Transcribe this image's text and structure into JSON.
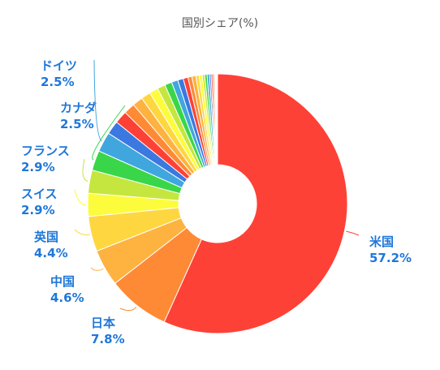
{
  "chart_data": {
    "type": "pie",
    "donut": true,
    "title": "国別シェア(%)",
    "slices": [
      {
        "name": "米国",
        "value": 57.2,
        "label": "57.2%",
        "labeled": true,
        "color": "#fe4136"
      },
      {
        "name": "日本",
        "value": 7.8,
        "label": "7.8%",
        "labeled": true,
        "color": "#fe8a36"
      },
      {
        "name": "中国",
        "value": 4.6,
        "label": "4.6%",
        "labeled": true,
        "color": "#feb23f"
      },
      {
        "name": "英国",
        "value": 4.4,
        "label": "4.4%",
        "labeled": true,
        "color": "#fed740"
      },
      {
        "name": "スイス",
        "value": 2.9,
        "label": "2.9%",
        "labeled": true,
        "color": "#fcfc3c"
      },
      {
        "name": "フランス",
        "value": 2.9,
        "label": "2.9%",
        "labeled": true,
        "color": "#c5e63e"
      },
      {
        "name": "カナダ",
        "value": 2.5,
        "label": "2.5%",
        "labeled": true,
        "color": "#3ad64a"
      },
      {
        "name": "ドイツ",
        "value": 2.5,
        "label": "2.5%",
        "labeled": true,
        "color": "#40a6de"
      },
      {
        "name": "",
        "value": 1.7,
        "label": "",
        "labeled": false,
        "color": "#3b78e0"
      },
      {
        "name": "",
        "value": 1.6,
        "label": "",
        "labeled": false,
        "color": "#fe4136"
      },
      {
        "name": "",
        "value": 1.4,
        "label": "",
        "labeled": false,
        "color": "#fe8a36"
      },
      {
        "name": "",
        "value": 1.3,
        "label": "",
        "labeled": false,
        "color": "#feb23f"
      },
      {
        "name": "",
        "value": 1.2,
        "label": "",
        "labeled": false,
        "color": "#fed740"
      },
      {
        "name": "",
        "value": 1.1,
        "label": "",
        "labeled": false,
        "color": "#fcfc3c"
      },
      {
        "name": "",
        "value": 1.0,
        "label": "",
        "labeled": false,
        "color": "#c5e63e"
      },
      {
        "name": "",
        "value": 0.9,
        "label": "",
        "labeled": false,
        "color": "#3ad64a"
      },
      {
        "name": "",
        "value": 0.8,
        "label": "",
        "labeled": false,
        "color": "#40a6de"
      },
      {
        "name": "",
        "value": 0.7,
        "label": "",
        "labeled": false,
        "color": "#3b78e0"
      },
      {
        "name": "",
        "value": 0.6,
        "label": "",
        "labeled": false,
        "color": "#fe4136"
      },
      {
        "name": "",
        "value": 0.5,
        "label": "",
        "labeled": false,
        "color": "#fe8a36"
      },
      {
        "name": "",
        "value": 0.5,
        "label": "",
        "labeled": false,
        "color": "#feb23f"
      },
      {
        "name": "",
        "value": 0.4,
        "label": "",
        "labeled": false,
        "color": "#fed740"
      },
      {
        "name": "",
        "value": 0.4,
        "label": "",
        "labeled": false,
        "color": "#fcfc3c"
      },
      {
        "name": "",
        "value": 0.3,
        "label": "",
        "labeled": false,
        "color": "#c5e63e"
      },
      {
        "name": "",
        "value": 0.3,
        "label": "",
        "labeled": false,
        "color": "#3ad64a"
      },
      {
        "name": "",
        "value": 0.3,
        "label": "",
        "labeled": false,
        "color": "#40a6de"
      },
      {
        "name": "",
        "value": 0.2,
        "label": "",
        "labeled": false,
        "color": "#3b78e0"
      },
      {
        "name": "",
        "value": 0.2,
        "label": "",
        "labeled": false,
        "color": "#fe4136"
      },
      {
        "name": "",
        "value": 0.2,
        "label": "",
        "labeled": false,
        "color": "#fe8a36"
      },
      {
        "name": "",
        "value": 0.1,
        "label": "",
        "labeled": false,
        "color": "#feb23f"
      },
      {
        "name": "",
        "value": 0.1,
        "label": "",
        "labeled": false,
        "color": "#fed740"
      },
      {
        "name": "",
        "value": 0.1,
        "label": "",
        "labeled": false,
        "color": "#fcfc3c"
      },
      {
        "name": "",
        "value": 0.1,
        "label": "",
        "labeled": false,
        "color": "#c5e63e"
      }
    ]
  }
}
